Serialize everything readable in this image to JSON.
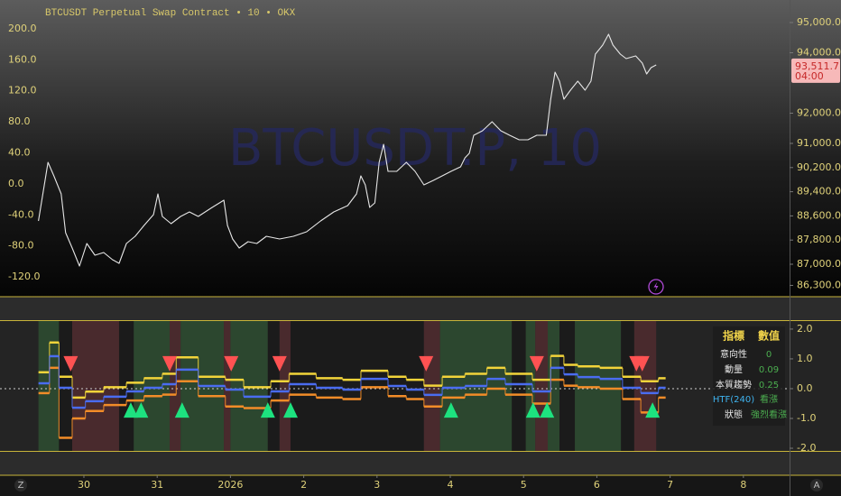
{
  "chart_data": [
    {
      "type": "line",
      "title": "BTCUSDT Perpetual Swap Contract • 10 • OKX",
      "watermark": "BTCUSDT.P, 10",
      "color": "#e6e6e6",
      "x": [
        -0.62,
        -0.49,
        -0.41,
        -0.31,
        -0.25,
        -0.16,
        -0.06,
        0.04,
        0.15,
        0.27,
        0.39,
        0.48,
        0.58,
        0.7,
        0.82,
        0.95,
        1.01,
        1.07,
        1.19,
        1.32,
        1.44,
        1.56,
        1.75,
        1.91,
        1.96,
        2.03,
        2.12,
        2.24,
        2.36,
        2.49,
        2.67,
        2.86,
        3.04,
        3.23,
        3.41,
        3.6,
        3.72,
        3.78,
        3.84,
        3.9,
        3.97,
        4.03,
        4.09,
        4.15,
        4.27,
        4.4,
        4.52,
        4.64,
        4.77,
        4.89,
        5.01,
        5.14,
        5.2,
        5.26,
        5.32,
        5.44,
        5.57,
        5.69,
        5.81,
        5.94,
        6.06,
        6.18,
        6.31,
        6.37,
        6.43,
        6.49,
        6.55,
        6.64,
        6.74,
        6.84,
        6.92,
        6.98,
        7.08,
        7.16,
        7.22,
        7.32,
        7.4,
        7.53,
        7.62,
        7.68,
        7.74,
        7.81
      ],
      "values": [
        88433,
        90373,
        89925,
        89328,
        88045,
        87537,
        86940,
        87687,
        87299,
        87388,
        87149,
        87030,
        87687,
        87926,
        88284,
        88642,
        89328,
        88582,
        88343,
        88582,
        88731,
        88582,
        88881,
        89120,
        88284,
        87836,
        87537,
        87746,
        87687,
        87926,
        87836,
        87926,
        88075,
        88433,
        88731,
        88940,
        89328,
        89925,
        89627,
        88881,
        89030,
        90373,
        90970,
        90075,
        90075,
        90373,
        90075,
        89627,
        89776,
        89925,
        90075,
        90224,
        90522,
        90672,
        91269,
        91418,
        91716,
        91418,
        91269,
        91119,
        91119,
        91269,
        91269,
        92463,
        93358,
        93060,
        92463,
        92761,
        93060,
        92761,
        93060,
        93955,
        94254,
        94612,
        94254,
        93955,
        93806,
        93896,
        93657,
        93299,
        93507,
        93597
      ],
      "xlim": [
        -1.145,
        9.63
      ],
      "xticks": [
        {
          "value": 0,
          "label": "30"
        },
        {
          "value": 1,
          "label": "31"
        },
        {
          "value": 2,
          "label": "2026"
        },
        {
          "value": 3,
          "label": "2"
        },
        {
          "value": 4,
          "label": "3"
        },
        {
          "value": 5,
          "label": "4"
        },
        {
          "value": 6,
          "label": "5"
        },
        {
          "value": 7,
          "label": "6"
        },
        {
          "value": 8,
          "label": "7"
        },
        {
          "value": 9,
          "label": "8"
        }
      ],
      "ylim": [
        85955,
        95746
      ],
      "yticks": [
        {
          "value": 95000,
          "label": "95,000.0"
        },
        {
          "value": 94000,
          "label": "94,000.0"
        },
        {
          "value": 92000,
          "label": "92,000.0"
        },
        {
          "value": 91000,
          "label": "91,000.0"
        },
        {
          "value": 90200,
          "label": "90,200.0"
        },
        {
          "value": 89400,
          "label": "89,400.0"
        },
        {
          "value": 88600,
          "label": "88,600.0"
        },
        {
          "value": 87800,
          "label": "87,800.0"
        },
        {
          "value": 87000,
          "label": "87,000.0"
        },
        {
          "value": 86300,
          "label": "86,300.0"
        }
      ],
      "y2lim": [
        -144.4,
        237.2
      ],
      "y2ticks": [
        {
          "value": 200,
          "label": "200.0"
        },
        {
          "value": 160,
          "label": "160.0"
        },
        {
          "value": 120,
          "label": "120.0"
        },
        {
          "value": 80,
          "label": "80.0"
        },
        {
          "value": 40,
          "label": "40.0"
        },
        {
          "value": 0,
          "label": "0.0"
        },
        {
          "value": -40,
          "label": "-40.0"
        },
        {
          "value": -80,
          "label": "-80.0"
        },
        {
          "value": -120,
          "label": "-120.0"
        }
      ],
      "last_price": {
        "value": 93511.7,
        "label": "93,511.7"
      },
      "countdown": "04:00"
    },
    {
      "type": "step",
      "xlim": [
        -1.145,
        9.63
      ],
      "ylim": [
        -2.09,
        2.27
      ],
      "yticks": [
        {
          "value": 2,
          "label": "2.0"
        },
        {
          "value": 1,
          "label": "1.0"
        },
        {
          "value": 0,
          "label": "0.0"
        },
        {
          "value": -1,
          "label": "-1.0"
        },
        {
          "value": -2,
          "label": "-2.0"
        }
      ],
      "baseline": 0,
      "x": [
        -0.62,
        -0.47,
        -0.34,
        -0.16,
        0.02,
        0.27,
        0.58,
        0.82,
        1.07,
        1.26,
        1.56,
        1.93,
        2.18,
        2.55,
        2.8,
        3.17,
        3.53,
        3.78,
        4.15,
        4.4,
        4.64,
        4.89,
        5.2,
        5.5,
        5.75,
        6.12,
        6.37,
        6.55,
        6.74,
        7.04,
        7.35,
        7.6,
        7.84
      ],
      "series": [
        {
          "color": "#f2d43a",
          "values": [
            0.55,
            1.55,
            0.4,
            -0.3,
            -0.1,
            0.05,
            0.2,
            0.35,
            0.5,
            1.05,
            0.4,
            0.3,
            0.05,
            0.25,
            0.5,
            0.35,
            0.3,
            0.6,
            0.4,
            0.3,
            0.1,
            0.4,
            0.5,
            0.7,
            0.5,
            0.3,
            1.1,
            0.8,
            0.75,
            0.7,
            0.4,
            0.25,
            0.35
          ]
        },
        {
          "color": "#f28c28",
          "values": [
            -0.15,
            0.7,
            -1.65,
            -1.0,
            -0.75,
            -0.55,
            -0.4,
            -0.25,
            -0.2,
            0.25,
            -0.25,
            -0.6,
            -0.65,
            -0.4,
            -0.2,
            -0.3,
            -0.35,
            0.05,
            -0.25,
            -0.35,
            -0.6,
            -0.3,
            -0.2,
            0.0,
            -0.2,
            -0.5,
            0.3,
            0.1,
            0.05,
            0.0,
            -0.35,
            -0.8,
            -0.3
          ]
        },
        {
          "color": "#4a6cf0",
          "values": [
            0.18,
            1.09,
            0.03,
            -0.64,
            -0.42,
            -0.27,
            -0.09,
            0.03,
            0.15,
            0.64,
            0.09,
            -0.03,
            -0.27,
            -0.09,
            0.15,
            0.03,
            -0.03,
            0.33,
            0.09,
            -0.03,
            -0.21,
            0.03,
            0.09,
            0.33,
            0.15,
            -0.09,
            0.7,
            0.48,
            0.39,
            0.33,
            0.03,
            -0.15,
            0.03
          ]
        }
      ],
      "regions": [
        {
          "x0": -0.62,
          "x1": -0.34,
          "color": "#2d4b31"
        },
        {
          "x0": -0.34,
          "x1": -0.16,
          "color": "#1b1b1b"
        },
        {
          "x0": -0.16,
          "x1": 0.48,
          "color": "#4e2b2f"
        },
        {
          "x0": 0.48,
          "x1": 0.68,
          "color": "#1b1b1b"
        },
        {
          "x0": 0.68,
          "x1": 1.17,
          "color": "#2d4b31"
        },
        {
          "x0": 1.17,
          "x1": 1.32,
          "color": "#4e2b2f"
        },
        {
          "x0": 1.32,
          "x1": 1.91,
          "color": "#2d4b31"
        },
        {
          "x0": 1.91,
          "x1": 2.0,
          "color": "#4e2b2f"
        },
        {
          "x0": 2.0,
          "x1": 2.51,
          "color": "#2d4b31"
        },
        {
          "x0": 2.51,
          "x1": 2.67,
          "color": "#1b1b1b"
        },
        {
          "x0": 2.67,
          "x1": 2.82,
          "color": "#4e2b2f"
        },
        {
          "x0": 2.82,
          "x1": 4.64,
          "color": "#1b1b1b"
        },
        {
          "x0": 4.64,
          "x1": 4.86,
          "color": "#4e2b2f"
        },
        {
          "x0": 4.86,
          "x1": 5.84,
          "color": "#2d4b31"
        },
        {
          "x0": 5.84,
          "x1": 6.03,
          "color": "#1b1b1b"
        },
        {
          "x0": 6.03,
          "x1": 6.16,
          "color": "#2d4b31"
        },
        {
          "x0": 6.16,
          "x1": 6.33,
          "color": "#4e2b2f"
        },
        {
          "x0": 6.33,
          "x1": 6.49,
          "color": "#2d4b31"
        },
        {
          "x0": 6.49,
          "x1": 6.7,
          "color": "#1b1b1b"
        },
        {
          "x0": 6.7,
          "x1": 7.33,
          "color": "#2d4b31"
        },
        {
          "x0": 7.33,
          "x1": 7.51,
          "color": "#1b1b1b"
        },
        {
          "x0": 7.51,
          "x1": 7.81,
          "color": "#4e2b2f"
        }
      ],
      "markers": [
        {
          "shape": "down",
          "color": "#ff5252",
          "y": 0.85,
          "x": [
            -0.18,
            1.17,
            2.01,
            2.67,
            4.67,
            6.18,
            7.54,
            7.62
          ]
        },
        {
          "shape": "up",
          "color": "#1de27f",
          "y": -0.73,
          "x": [
            0.64,
            0.78,
            1.34,
            2.51,
            2.82,
            5.01,
            6.13,
            6.32,
            7.76
          ]
        }
      ]
    }
  ],
  "table": {
    "header": [
      "指標",
      "數值"
    ],
    "rows": [
      [
        "意向性",
        "0"
      ],
      [
        "動量",
        "0.09"
      ],
      [
        "本質趨勢",
        "0.25"
      ],
      [
        "HTF(240)",
        "看漲"
      ],
      [
        "狀態",
        "強烈看漲"
      ]
    ]
  },
  "ui": {
    "buttons": [
      "Z",
      "A"
    ]
  }
}
